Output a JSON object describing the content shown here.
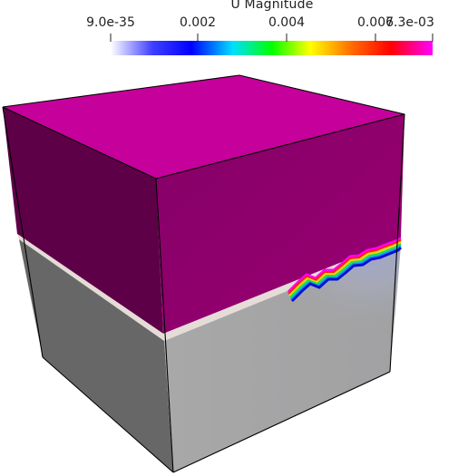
{
  "colorbar": {
    "title": "U Magnitude",
    "ticks": [
      "9.0e-35",
      "0.002",
      "0.004",
      "0.006",
      "7.3e-03"
    ]
  },
  "colors": {
    "top_face": "#c7009a",
    "left_upper": "#5f0049",
    "right_upper": "#8b006b",
    "left_lower": "#676767",
    "right_lower": "#a6a6a6",
    "interface": "#e7ddd8",
    "outline": "#000000"
  }
}
